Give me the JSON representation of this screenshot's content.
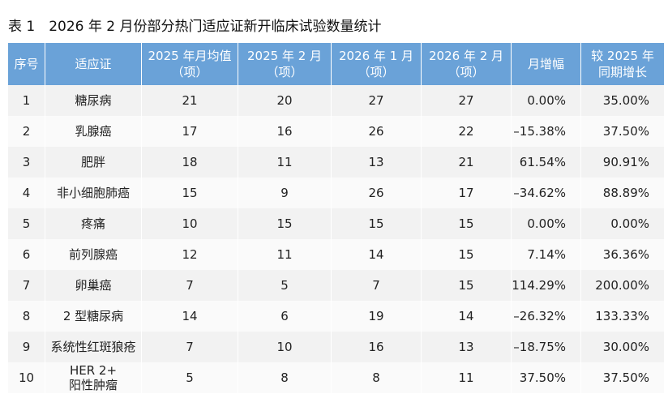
{
  "header": {
    "title": "表 1　2026 年 2 月份部分热门适应证新开临床试验数量统计"
  },
  "table": {
    "columns": [
      "序号",
      "适应证",
      "2025 年月均值\n（项）",
      "2025 年 2 月\n（项）",
      "2026 年 1 月\n（项）",
      "2026 年 2 月\n（项）",
      "月增幅",
      "较 2025 年\n同期增长"
    ],
    "rows": [
      [
        1,
        "糖尿病",
        21,
        20,
        27,
        27,
        "0.00%",
        "35.00%"
      ],
      [
        2,
        "乳腺癌",
        17,
        16,
        26,
        22,
        "–15.38%",
        "37.50%"
      ],
      [
        3,
        "肥胖",
        18,
        11,
        13,
        21,
        "61.54%",
        "90.91%"
      ],
      [
        4,
        "非小细胞肺癌",
        15,
        9,
        26,
        17,
        "–34.62%",
        "88.89%"
      ],
      [
        5,
        "疼痛",
        10,
        15,
        15,
        15,
        "0.00%",
        "0.00%"
      ],
      [
        6,
        "前列腺癌",
        12,
        11,
        14,
        15,
        "7.14%",
        "36.36%"
      ],
      [
        7,
        "卵巢癌",
        7,
        5,
        7,
        15,
        "114.29%",
        "200.00%"
      ],
      [
        8,
        "2 型糖尿病",
        14,
        6,
        19,
        14,
        "–26.32%",
        "133.33%"
      ],
      [
        9,
        "系统性红斑狼疮",
        7,
        10,
        16,
        13,
        "–18.75%",
        "30.00%"
      ],
      [
        10,
        "HER 2+\n阳性肿瘤",
        5,
        8,
        8,
        11,
        "37.50%",
        "37.50%"
      ]
    ]
  }
}
